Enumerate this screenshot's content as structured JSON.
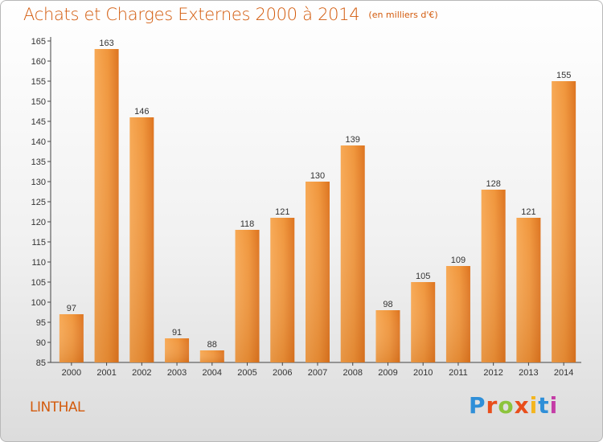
{
  "header": {
    "title": "Achats et Charges Externes 2000 à 2014",
    "subtitle": "(en milliers d'€)"
  },
  "footer": {
    "city": "LINTHAL",
    "logo_text": "Proxiti",
    "logo_colors": [
      "#2f8fd8",
      "#e94e1b",
      "#8cc43c",
      "#e94e1b",
      "#f4b51e",
      "#2f8fd8",
      "#c43ca6"
    ]
  },
  "chart_data": {
    "type": "bar",
    "title": "Achats et Charges Externes 2000 à 2014",
    "subtitle": "(en milliers d'€)",
    "categories": [
      "2000",
      "2001",
      "2002",
      "2003",
      "2004",
      "2005",
      "2006",
      "2007",
      "2008",
      "2009",
      "2010",
      "2011",
      "2012",
      "2013",
      "2014"
    ],
    "values": [
      97,
      163,
      146,
      91,
      88,
      118,
      121,
      130,
      139,
      98,
      105,
      109,
      128,
      121,
      155
    ],
    "ylim": [
      85,
      165
    ],
    "yticks": [
      85,
      90,
      95,
      100,
      105,
      110,
      115,
      120,
      125,
      130,
      135,
      140,
      145,
      150,
      155,
      160,
      165
    ],
    "grid": false,
    "legend": "none",
    "bar_color": "#f0963c",
    "bar_color_dark": "#dd7420"
  }
}
